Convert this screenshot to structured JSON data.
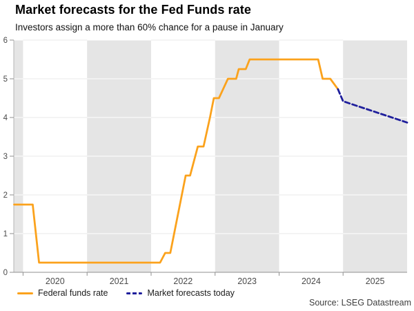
{
  "header": {
    "title": "Market forecasts for the Fed Funds rate",
    "subtitle": "Investors assign a more than 60% chance for a pause in January"
  },
  "source": "Source: LSEG Datastream",
  "legend": {
    "items": [
      {
        "label": "Federal funds rate",
        "color": "#FBA21C",
        "style": "solid"
      },
      {
        "label": "Market forecasts today",
        "color": "#1F1F9C",
        "style": "dashed"
      }
    ]
  },
  "chart_data": {
    "type": "line",
    "title": "Market forecasts for the Fed Funds rate",
    "xlabel": "",
    "ylabel": "",
    "ylim": [
      0,
      6
    ],
    "x_range": [
      2019.855,
      2026.0
    ],
    "y_ticks": [
      0,
      1,
      2,
      3,
      4,
      5,
      6
    ],
    "x_year_ticks": [
      2020,
      2021,
      2022,
      2023,
      2024,
      2025
    ],
    "shaded_year_bands": [
      [
        2019.855,
        2020
      ],
      [
        2021,
        2022
      ],
      [
        2023,
        2024
      ],
      [
        2025,
        2026
      ]
    ],
    "grid": "horizontal",
    "legend_position": "bottom-left",
    "colors": {
      "band": "#E5E5E5",
      "gridline": "#EAEAEA",
      "axis": "#8F8F8F",
      "federal_funds_rate": "#FBA21C",
      "market_forecast": "#1F1F9C"
    },
    "series": [
      {
        "name": "Federal funds rate",
        "color": "#FBA21C",
        "line_style": "solid",
        "points": [
          [
            2019.86,
            1.75
          ],
          [
            2020.15,
            1.75
          ],
          [
            2020.25,
            0.25
          ],
          [
            2022.14,
            0.25
          ],
          [
            2022.22,
            0.5
          ],
          [
            2022.3,
            0.5
          ],
          [
            2022.54,
            2.5
          ],
          [
            2022.61,
            2.5
          ],
          [
            2022.73,
            3.25
          ],
          [
            2022.82,
            3.25
          ],
          [
            2022.92,
            4.0
          ],
          [
            2022.98,
            4.5
          ],
          [
            2023.06,
            4.5
          ],
          [
            2023.2,
            5.0
          ],
          [
            2023.33,
            5.0
          ],
          [
            2023.37,
            5.25
          ],
          [
            2023.48,
            5.25
          ],
          [
            2023.54,
            5.5
          ],
          [
            2024.61,
            5.5
          ],
          [
            2024.68,
            5.0
          ],
          [
            2024.8,
            5.0
          ],
          [
            2024.92,
            4.73
          ]
        ]
      },
      {
        "name": "Market forecasts today",
        "color": "#1F1F9C",
        "line_style": "dashed",
        "dash": "7 4",
        "points": [
          [
            2024.92,
            4.73
          ],
          [
            2025.0,
            4.42
          ],
          [
            2026.0,
            3.87
          ]
        ]
      }
    ]
  }
}
